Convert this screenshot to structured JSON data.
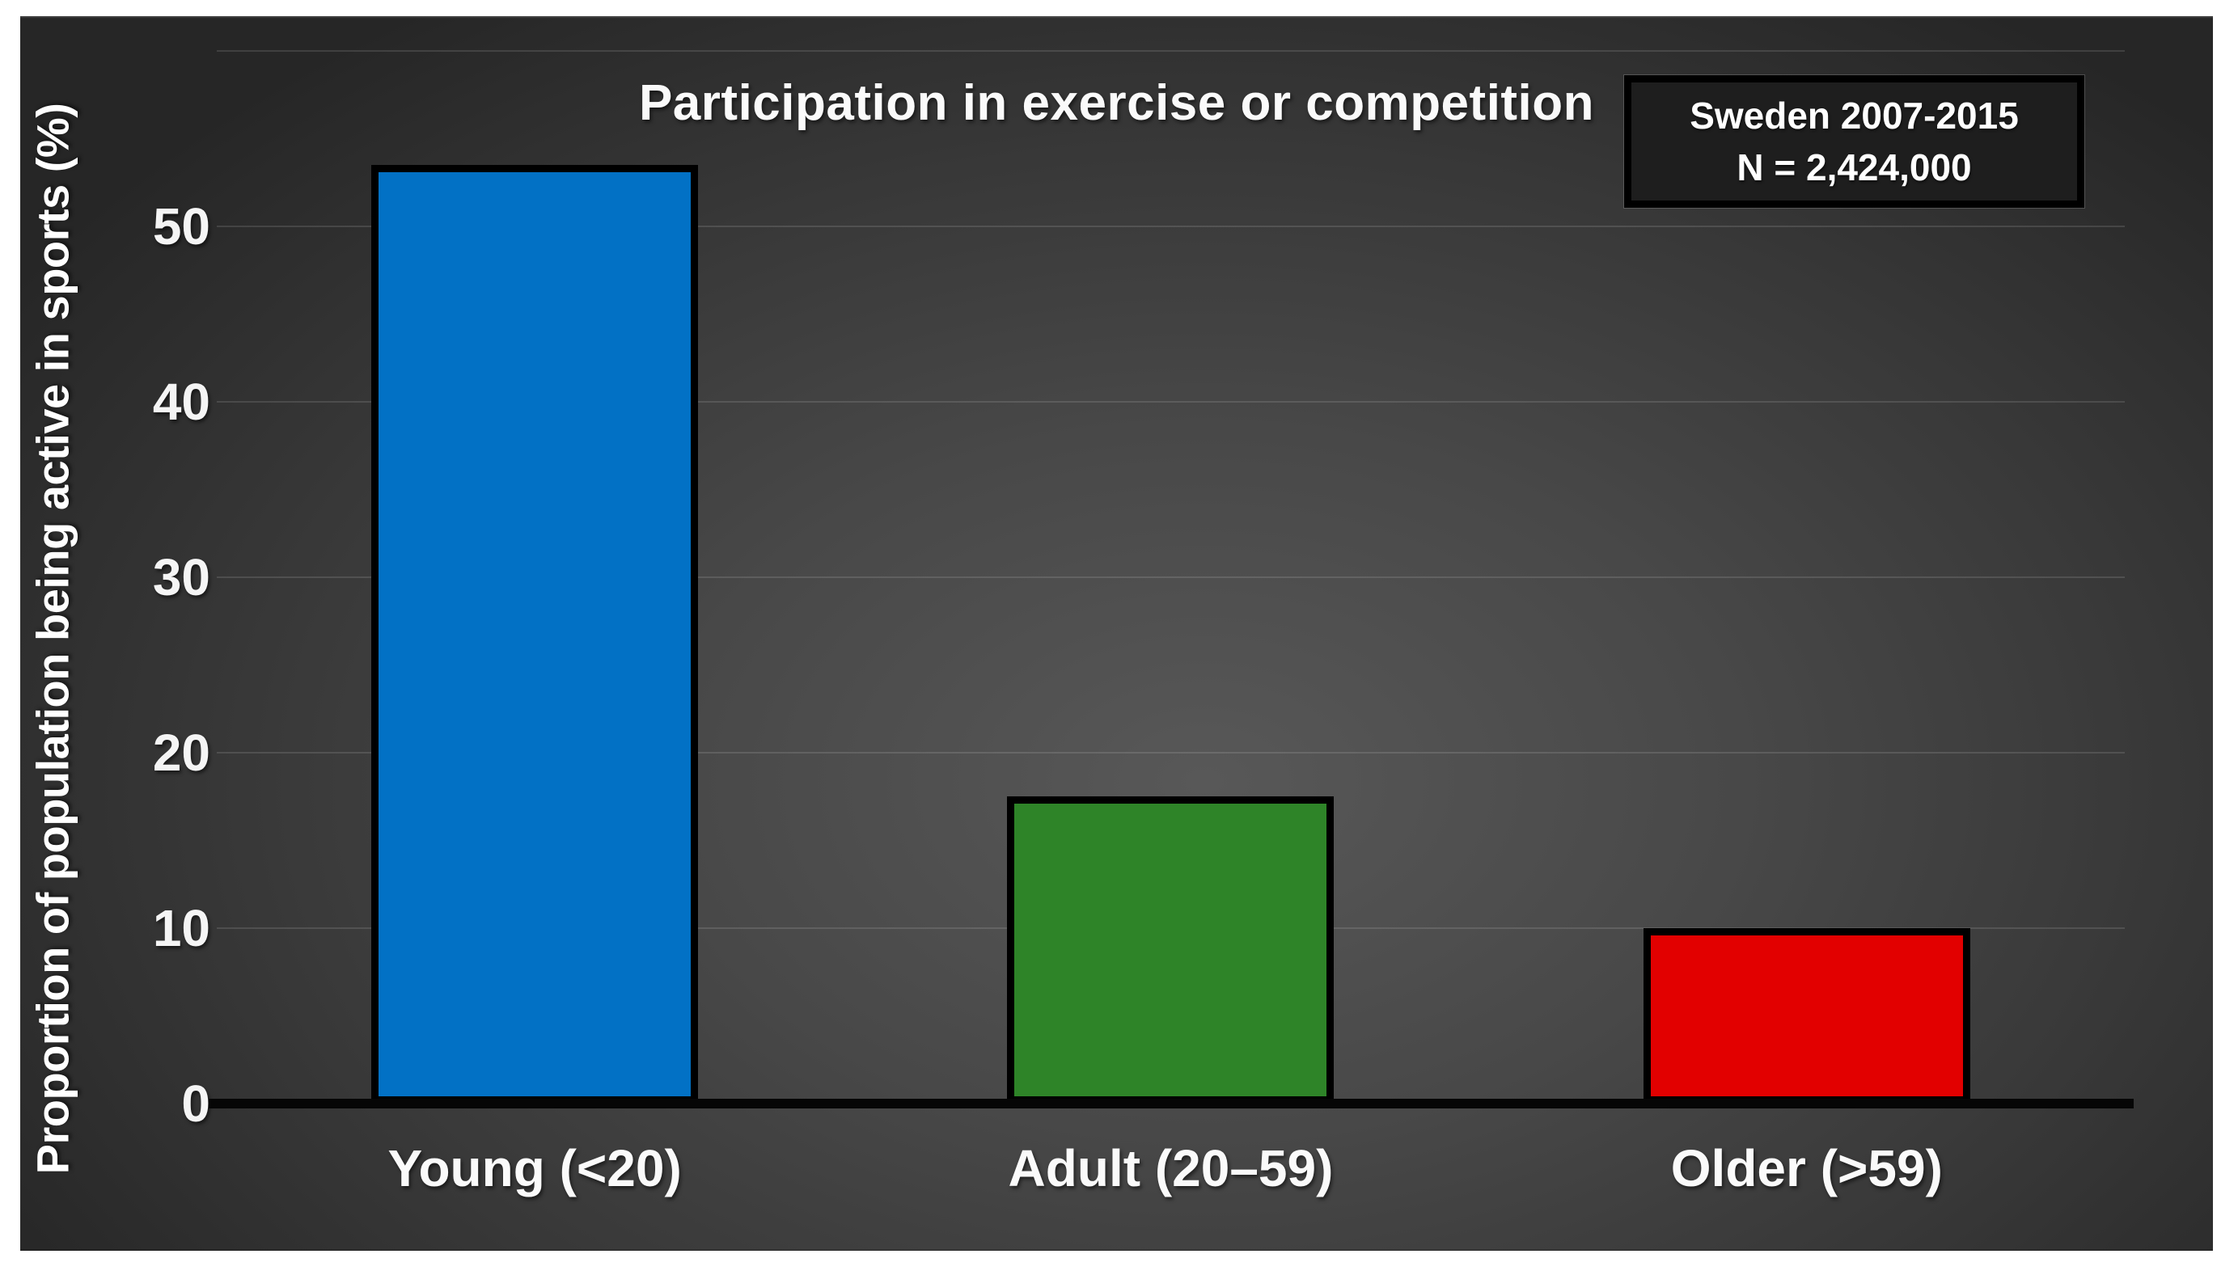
{
  "chart_data": {
    "type": "bar",
    "title": "Participation in exercise or competition",
    "categories": [
      "Young (<20)",
      "Adult (20–59)",
      "Older (>59)"
    ],
    "values": [
      53.5,
      17.5,
      10
    ],
    "bar_colors": [
      "#0271c5",
      "#2e8428",
      "#e20000"
    ],
    "bar_border_color": "#000000",
    "ylabel": "Proportion of population being active in sports (%)",
    "xlabel": "",
    "ylim": [
      0,
      60
    ],
    "ytick_labels": [
      0,
      10,
      20,
      30,
      40,
      50
    ],
    "gridline_values": [
      10,
      20,
      30,
      40,
      50,
      60
    ],
    "grid": "horizontal faint gridlines on dark background",
    "legend": "none",
    "annotation_lines": [
      "Sweden 2007-2015",
      "N = 2,424,000"
    ],
    "background_color_center": "#585858",
    "background_color_edge": "#262626",
    "text_color": "#ffffff"
  }
}
